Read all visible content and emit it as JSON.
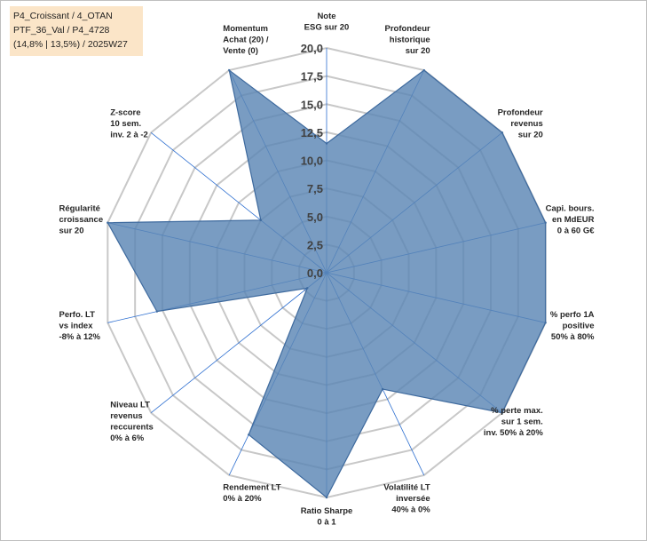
{
  "title_lines": [
    "P4_Croissant / 4_OTAN",
    "PTF_36_Val / P4_4728",
    "(14,8% | 13,5%) / 2025W27"
  ],
  "chart_data": {
    "type": "radar",
    "r_min": 0,
    "r_max": 20,
    "r_step": 2.5,
    "tick_labels": [
      "0,0",
      "2,5",
      "5,0",
      "7,5",
      "10,0",
      "12,5",
      "15,0",
      "17,5",
      "20,0"
    ],
    "grid": true,
    "colors": {
      "fill": "#5b86b5",
      "stroke": "#3e6a9e",
      "grid": "#c8c8c8",
      "spoke": "#2e6fd0"
    },
    "categories": [
      [
        "Note",
        "ESG sur 20"
      ],
      [
        "Profondeur",
        "historique",
        "sur 20"
      ],
      [
        "Profondeur",
        "revenus",
        "sur 20"
      ],
      [
        "Capi. bours.",
        "en MdEUR",
        "0 à 60 G€"
      ],
      [
        "% perfo 1A",
        "positive",
        "50% à 80%"
      ],
      [
        "% perte max.",
        "sur 1 sem.",
        "inv. 50% à 20%"
      ],
      [
        "Volatilité LT",
        "inversée",
        "40% à 0%"
      ],
      [
        "Ratio Sharpe",
        "0 à 1"
      ],
      [
        "Rendement LT",
        "0% à 20%"
      ],
      [
        "Niveau LT",
        "revenus",
        "reccurents",
        "0% à 6%"
      ],
      [
        "Perfo. LT",
        "vs index",
        "-8% à 12%"
      ],
      [
        "Régularité",
        "croissance",
        "sur 20"
      ],
      [
        "Z-score",
        "10 sem.",
        "inv. 2 à -2"
      ],
      [
        "Momentum",
        "Achat (20) /",
        "Vente (0)"
      ]
    ],
    "values": [
      11.5,
      20,
      20,
      20,
      20,
      20,
      11.5,
      20,
      16,
      2.2,
      15.5,
      20,
      7.5,
      20
    ]
  }
}
